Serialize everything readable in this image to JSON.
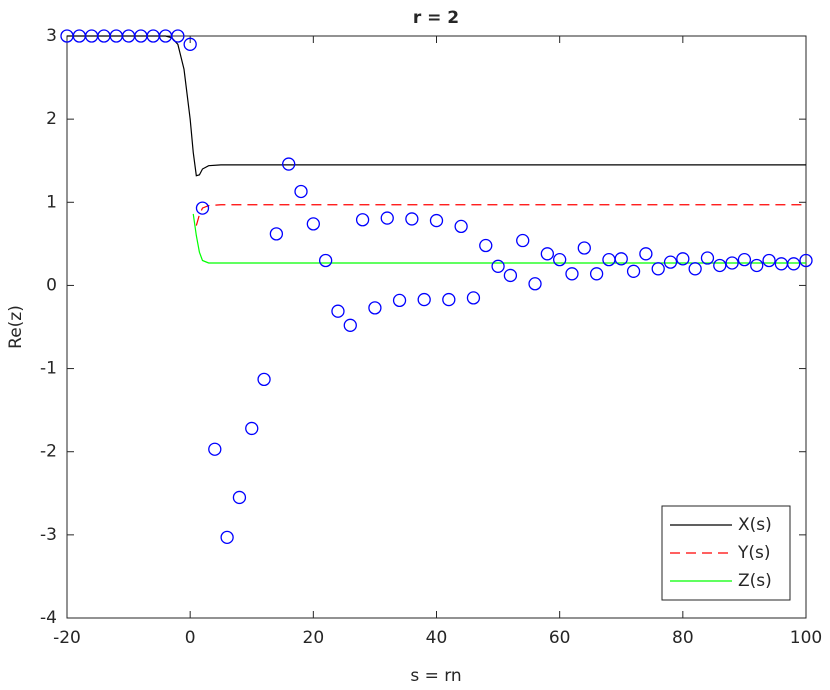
{
  "chart_data": {
    "type": "line",
    "title": "r = 2",
    "x_label": "s = rn",
    "y_label": "Re(z)",
    "xlim": [
      -20,
      100
    ],
    "xticks": [
      -20,
      0,
      20,
      40,
      60,
      80,
      100
    ],
    "ylim": [
      -4,
      3
    ],
    "yticks": [
      -4,
      -3,
      -2,
      -1,
      0,
      1,
      2,
      3
    ],
    "legend": "lower right",
    "series": [
      {
        "name": "X(s)",
        "color": "#000000",
        "dash": "solid",
        "x": [
          -20,
          -4,
          -3,
          -2,
          -1,
          0,
          0.5,
          1,
          1.5,
          2,
          3,
          5,
          100
        ],
        "values": [
          3,
          3,
          2.98,
          2.9,
          2.6,
          2.0,
          1.6,
          1.32,
          1.33,
          1.4,
          1.44,
          1.45,
          1.45
        ]
      },
      {
        "name": "Y(s)",
        "color": "#ff0000",
        "dash": "dashed",
        "x": [
          1,
          1.5,
          2,
          3,
          5,
          100
        ],
        "values": [
          0.72,
          0.85,
          0.93,
          0.96,
          0.97,
          0.97
        ]
      },
      {
        "name": "Z(s)",
        "color": "#00ff00",
        "dash": "solid",
        "x": [
          0.5,
          1,
          1.5,
          2,
          3,
          5,
          100
        ],
        "values": [
          0.86,
          0.6,
          0.4,
          0.3,
          0.27,
          0.27,
          0.27
        ]
      },
      {
        "color": "#0000ff",
        "marker": "circle",
        "x": [
          -20,
          -18,
          -16,
          -14,
          -12,
          -10,
          -8,
          -6,
          -4,
          -2,
          0,
          2,
          4,
          6,
          8,
          10,
          12,
          14,
          16,
          18,
          20,
          22,
          24,
          26,
          28,
          30,
          32,
          34,
          36,
          38,
          40,
          42,
          44,
          46,
          48,
          50,
          52,
          54,
          56,
          58,
          60,
          62,
          64,
          66,
          68,
          70,
          72,
          74,
          76,
          78,
          80,
          82,
          84,
          86,
          88,
          90,
          92,
          94,
          96,
          98,
          100
        ],
        "values": [
          3,
          3,
          3,
          3,
          3,
          3,
          3,
          3,
          3,
          3,
          2.9,
          0.93,
          -1.97,
          -3.03,
          -2.55,
          -1.72,
          -1.13,
          0.62,
          1.46,
          1.13,
          0.74,
          0.3,
          -0.31,
          -0.48,
          0.79,
          -0.27,
          0.81,
          -0.18,
          0.8,
          -0.17,
          0.78,
          -0.17,
          0.71,
          -0.15,
          0.48,
          0.23,
          0.12,
          0.54,
          0.02,
          0.38,
          0.31,
          0.14,
          0.45,
          0.14,
          0.31,
          0.32,
          0.17,
          0.38,
          0.2,
          0.28,
          0.32,
          0.2,
          0.33,
          0.24,
          0.27,
          0.31,
          0.24,
          0.3,
          0.26,
          0.26,
          0.3
        ]
      }
    ]
  }
}
